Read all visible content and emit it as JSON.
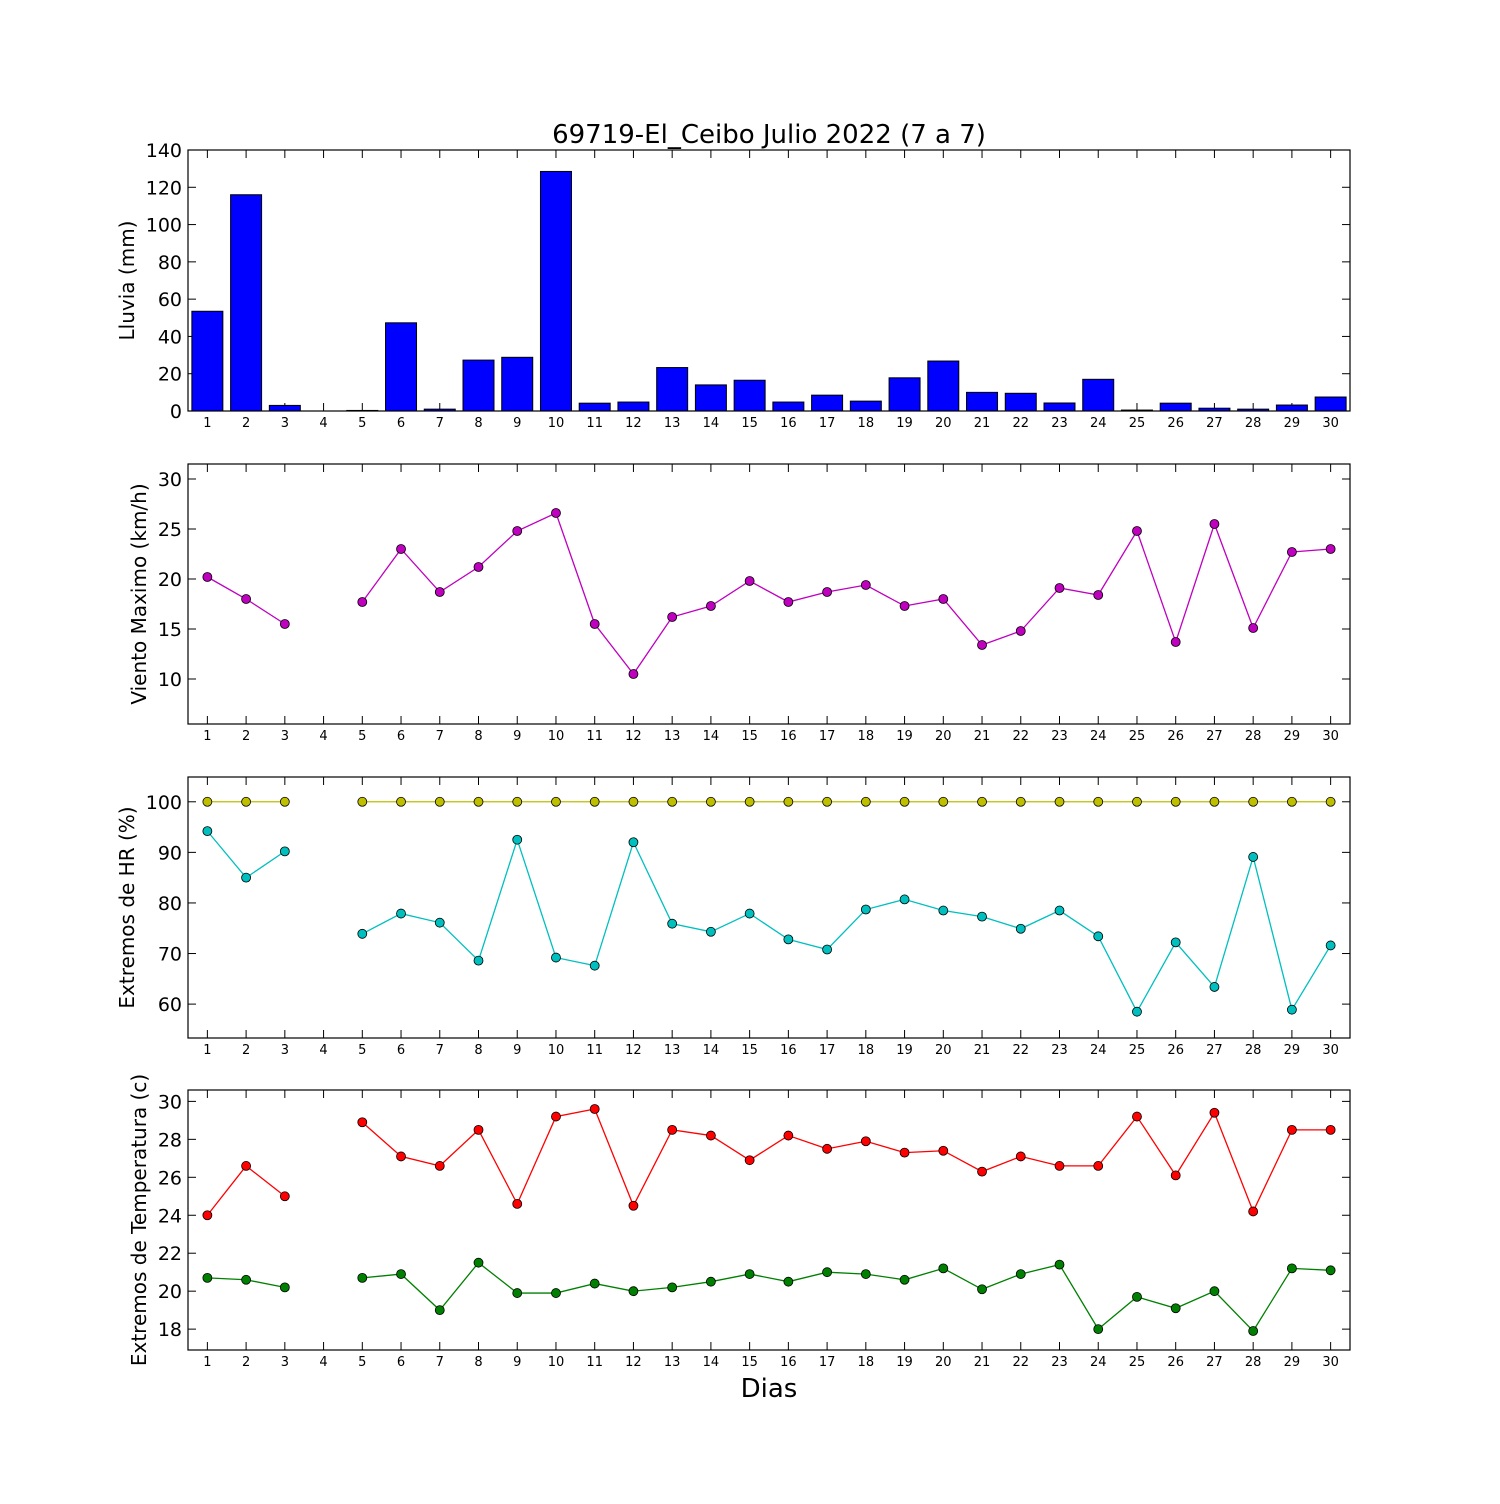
{
  "figure": {
    "title": "69719-El_Ceibo Julio 2022  (7 a 7)",
    "xlabel": "Dias"
  },
  "chart_data": [
    {
      "type": "bar",
      "ylabel": "Lluvia (mm)",
      "ylim": [
        0,
        140
      ],
      "yticks": [
        0,
        20,
        40,
        60,
        80,
        100,
        120,
        140
      ],
      "categories": [
        "1",
        "2",
        "3",
        "4",
        "5",
        "6",
        "7",
        "8",
        "9",
        "10",
        "11",
        "12",
        "13",
        "14",
        "15",
        "16",
        "17",
        "18",
        "19",
        "20",
        "21",
        "22",
        "23",
        "24",
        "25",
        "26",
        "27",
        "28",
        "29",
        "30"
      ],
      "series": [
        {
          "color": "#0000ff",
          "values": [
            53.5,
            116.0,
            3.0,
            0.0,
            0.3,
            47.3,
            1.0,
            27.3,
            28.8,
            128.5,
            4.2,
            4.8,
            23.3,
            14.0,
            16.5,
            4.8,
            8.5,
            5.3,
            17.8,
            26.8,
            10.0,
            9.5,
            4.3,
            17.0,
            0.5,
            4.2,
            1.5,
            1.0,
            3.2,
            7.5
          ]
        }
      ]
    },
    {
      "type": "line",
      "ylabel": "Viento Maximo (km/h)",
      "ylim": [
        5.5,
        31.5
      ],
      "yticks": [
        10,
        15,
        20,
        25,
        30
      ],
      "x": [
        1,
        2,
        3,
        4,
        5,
        6,
        7,
        8,
        9,
        10,
        11,
        12,
        13,
        14,
        15,
        16,
        17,
        18,
        19,
        20,
        21,
        22,
        23,
        24,
        25,
        26,
        27,
        28,
        29,
        30
      ],
      "series": [
        {
          "color": "#bf00bf",
          "values": [
            20.2,
            18.0,
            15.5,
            null,
            17.7,
            23.0,
            18.7,
            21.2,
            24.8,
            26.6,
            15.5,
            10.5,
            16.2,
            17.3,
            19.8,
            17.7,
            18.7,
            19.4,
            17.3,
            18.0,
            13.4,
            14.8,
            19.1,
            18.4,
            24.8,
            13.7,
            25.5,
            15.1,
            22.7,
            23.0
          ]
        }
      ]
    },
    {
      "type": "line",
      "ylabel": "Extremos de HR (%)",
      "ylim": [
        53.3,
        104.9
      ],
      "yticks": [
        60,
        70,
        80,
        90,
        100
      ],
      "x": [
        1,
        2,
        3,
        4,
        5,
        6,
        7,
        8,
        9,
        10,
        11,
        12,
        13,
        14,
        15,
        16,
        17,
        18,
        19,
        20,
        21,
        22,
        23,
        24,
        25,
        26,
        27,
        28,
        29,
        30
      ],
      "series": [
        {
          "color": "#bfbf00",
          "values": [
            100,
            100,
            100,
            null,
            100,
            100,
            100,
            100,
            100,
            100,
            100,
            100,
            100,
            100,
            100,
            100,
            100,
            100,
            100,
            100,
            100,
            100,
            100,
            100,
            100,
            100,
            100,
            100,
            100,
            100
          ]
        },
        {
          "color": "#00bfbf",
          "values": [
            94.2,
            85.0,
            90.2,
            null,
            73.9,
            77.9,
            76.1,
            68.6,
            92.5,
            69.2,
            67.6,
            92.0,
            75.9,
            74.3,
            77.9,
            72.8,
            70.8,
            78.7,
            80.7,
            78.5,
            77.3,
            74.9,
            78.5,
            73.4,
            58.5,
            72.2,
            63.4,
            89.1,
            58.9,
            71.6
          ]
        }
      ]
    },
    {
      "type": "line",
      "ylabel": "Extremos de Temperatura (c)",
      "ylim": [
        16.9,
        30.6
      ],
      "yticks": [
        18,
        20,
        22,
        24,
        26,
        28,
        30
      ],
      "x": [
        1,
        2,
        3,
        4,
        5,
        6,
        7,
        8,
        9,
        10,
        11,
        12,
        13,
        14,
        15,
        16,
        17,
        18,
        19,
        20,
        21,
        22,
        23,
        24,
        25,
        26,
        27,
        28,
        29,
        30
      ],
      "series": [
        {
          "color": "#ff0000",
          "values": [
            24.0,
            26.6,
            25.0,
            null,
            28.9,
            27.1,
            26.6,
            28.5,
            24.6,
            29.2,
            29.6,
            24.5,
            28.5,
            28.2,
            26.9,
            28.2,
            27.5,
            27.9,
            27.3,
            27.4,
            26.3,
            27.1,
            26.6,
            26.6,
            29.2,
            26.1,
            29.4,
            24.2,
            28.5,
            28.5
          ]
        },
        {
          "color": "#008000",
          "values": [
            20.7,
            20.6,
            20.2,
            null,
            20.7,
            20.9,
            19.0,
            21.5,
            19.9,
            19.9,
            20.4,
            20.0,
            20.2,
            20.5,
            20.9,
            20.5,
            21.0,
            20.9,
            20.6,
            21.2,
            20.1,
            20.9,
            21.4,
            18.0,
            19.7,
            19.1,
            20.0,
            17.9,
            21.2,
            21.1
          ]
        }
      ]
    }
  ]
}
